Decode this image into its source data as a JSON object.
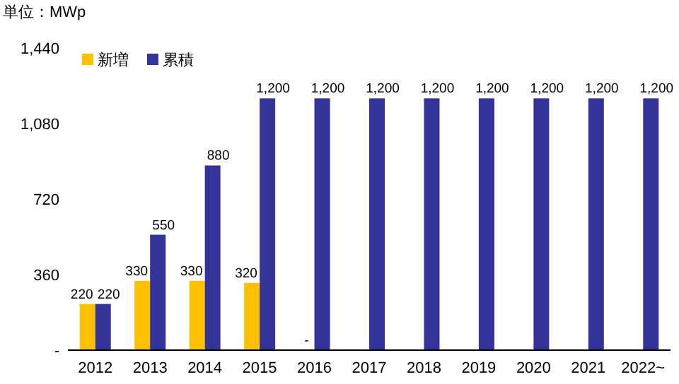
{
  "chart_data": {
    "type": "bar",
    "annotations": [
      "単位：MWp"
    ],
    "categories": [
      "2012",
      "2013",
      "2014",
      "2015",
      "2016",
      "2017",
      "2018",
      "2019",
      "2020",
      "2021",
      "2022~"
    ],
    "series": [
      {
        "name": "新増",
        "color": "#ffc000",
        "values": [
          220,
          330,
          330,
          320,
          0,
          null,
          null,
          null,
          null,
          null,
          null
        ],
        "value_labels": [
          "220",
          "330",
          "330",
          "320",
          "-",
          null,
          null,
          null,
          null,
          null,
          null
        ]
      },
      {
        "name": "累積",
        "color": "#333399",
        "values": [
          220,
          550,
          880,
          1200,
          1200,
          1200,
          1200,
          1200,
          1200,
          1200,
          1200
        ],
        "value_labels": [
          "220",
          "550",
          "880",
          "1,200",
          "1,200",
          "1,200",
          "1,200",
          "1,200",
          "1,200",
          "1,200",
          "1,200"
        ]
      }
    ],
    "ylim": [
      0,
      1440
    ],
    "yticks": [
      {
        "value": 0,
        "label": "-"
      },
      360,
      720,
      {
        "value": 1080,
        "label": "1,080"
      },
      {
        "value": 1440,
        "label": "1,440"
      }
    ],
    "legend": "top left",
    "grid": false
  }
}
